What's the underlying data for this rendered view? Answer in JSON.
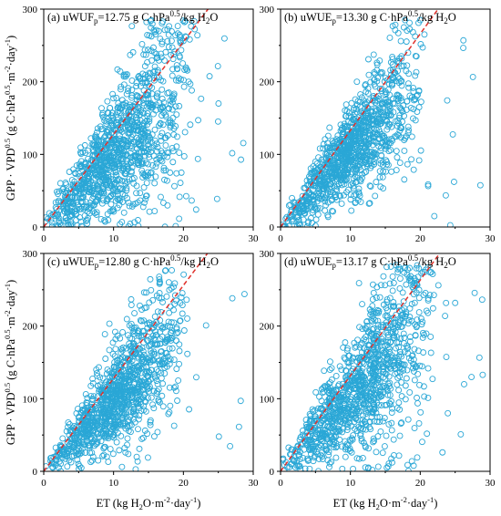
{
  "chart_data": [
    {
      "type": "scatter",
      "title": "(a) uWUF",
      "title_sub": "p",
      "title_rest": "=12.75 g C·hPa",
      "title_sup": "0.5",
      "title_tail": "/kg H",
      "title_sub2": "2",
      "title_end": "O",
      "ylabel": "GPP · VPD^0.5 (g C·hPa^0.5·m^-2·day^-1)",
      "xlabel": "",
      "xlim": [
        0,
        30
      ],
      "ylim": [
        0,
        300
      ],
      "xticks": [
        "0",
        "10",
        "20",
        "30"
      ],
      "yticks": [
        "0",
        "100",
        "200",
        "300"
      ],
      "slope": 12.75,
      "cloud": {
        "count": 1150,
        "seed": 11,
        "spread": 0.32,
        "xmax": 22,
        "outliers": 60
      }
    },
    {
      "type": "scatter",
      "title": "(b) uWUE",
      "title_sub": "p",
      "title_rest": "=13.30 g C·hPa",
      "title_sup": "0.5",
      "title_tail": "/kg H",
      "title_sub2": "2",
      "title_end": "O",
      "ylabel": "",
      "xlabel": "",
      "xlim": [
        0,
        30
      ],
      "ylim": [
        0,
        300
      ],
      "xticks": [
        "0",
        "10",
        "20",
        "30"
      ],
      "yticks": [
        "0",
        "100",
        "200",
        "300"
      ],
      "slope": 13.3,
      "cloud": {
        "count": 1100,
        "seed": 23,
        "spread": 0.22,
        "xmax": 21,
        "outliers": 25
      }
    },
    {
      "type": "scatter",
      "title": "(c) uWUE",
      "title_sub": "p",
      "title_rest": "=12.80 g C·hPa",
      "title_sup": "0.5",
      "title_tail": "/kg H",
      "title_sub2": "2",
      "title_end": "O",
      "ylabel": "GPP · VPD^0.5 (g C·hPa^0.5·m^-2·day^-1)",
      "xlabel": "ET (kg H2O·m^-2·day^-1)",
      "xlim": [
        0,
        30
      ],
      "ylim": [
        0,
        300
      ],
      "xticks": [
        "0",
        "10",
        "20",
        "30"
      ],
      "yticks": [
        "0",
        "100",
        "200",
        "300"
      ],
      "slope": 12.8,
      "cloud": {
        "count": 1100,
        "seed": 37,
        "spread": 0.24,
        "xmax": 21,
        "outliers": 35
      }
    },
    {
      "type": "scatter",
      "title": "(d) uWUE",
      "title_sub": "p",
      "title_rest": "=13.17 g C·hPa",
      "title_sup": "0.5",
      "title_tail": "/kg H",
      "title_sub2": "2",
      "title_end": "O",
      "ylabel": "",
      "xlabel": "ET (kg H2O·m^-2·day^-1)",
      "xlim": [
        0,
        30
      ],
      "ylim": [
        0,
        300
      ],
      "xticks": [
        "0",
        "10",
        "20",
        "30"
      ],
      "yticks": [
        "0",
        "100",
        "200",
        "300"
      ],
      "slope": 13.17,
      "cloud": {
        "count": 1150,
        "seed": 53,
        "spread": 0.3,
        "xmax": 23,
        "outliers": 55
      }
    }
  ],
  "labels": {
    "ylabel_main": "GPP · VPD",
    "ylabel_sup1": "0.5",
    "ylabel_mid": " (g C·hPa",
    "ylabel_sup2": "0.5",
    "ylabel_mid2": "·m",
    "ylabel_sup3": "-2",
    "ylabel_mid3": "·day",
    "ylabel_sup4": "-1",
    "ylabel_end": ")",
    "xlabel_main": "ET (kg H",
    "xlabel_sub": "2",
    "xlabel_mid": "O·m",
    "xlabel_sup1": "-2",
    "xlabel_mid2": "·day",
    "xlabel_sup2": "-1",
    "xlabel_end": ")"
  },
  "colors": {
    "marker": "#2aa7d6",
    "fit_line": "#e0312b",
    "axis": "#000000"
  }
}
